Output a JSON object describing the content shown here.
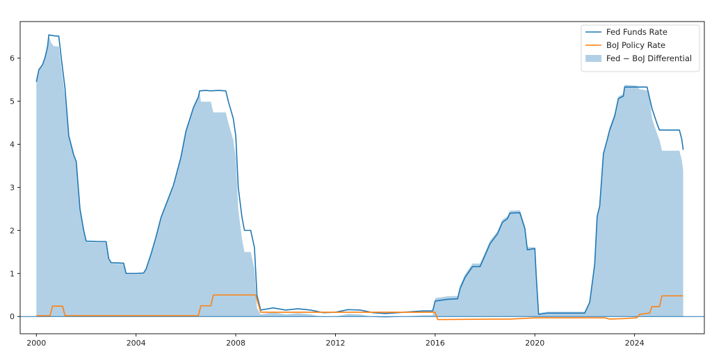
{
  "chart_data": {
    "type": "line",
    "title": "",
    "xlabel": "",
    "ylabel": "",
    "xlim": [
      1999.35,
      2026.8
    ],
    "ylim": [
      -0.4,
      6.85
    ],
    "x_ticks": [
      2000,
      2004,
      2008,
      2012,
      2016,
      2020,
      2024
    ],
    "y_ticks": [
      0,
      1,
      2,
      3,
      4,
      5,
      6
    ],
    "grid": false,
    "legend_position": "top-right",
    "zero_line": true,
    "series": [
      {
        "name": "Fed Funds Rate",
        "kind": "line",
        "color": "#1f77b4",
        "points": [
          [
            2000.0,
            5.45
          ],
          [
            2000.1,
            5.73
          ],
          [
            2000.25,
            5.85
          ],
          [
            2000.35,
            6.02
          ],
          [
            2000.45,
            6.27
          ],
          [
            2000.5,
            6.54
          ],
          [
            2000.7,
            6.52
          ],
          [
            2000.9,
            6.51
          ],
          [
            2001.0,
            6.0
          ],
          [
            2001.15,
            5.3
          ],
          [
            2001.3,
            4.2
          ],
          [
            2001.5,
            3.75
          ],
          [
            2001.6,
            3.6
          ],
          [
            2001.75,
            2.5
          ],
          [
            2001.9,
            2.0
          ],
          [
            2002.0,
            1.75
          ],
          [
            2002.5,
            1.74
          ],
          [
            2002.8,
            1.74
          ],
          [
            2002.9,
            1.35
          ],
          [
            2003.0,
            1.25
          ],
          [
            2003.5,
            1.24
          ],
          [
            2003.6,
            1.0
          ],
          [
            2004.0,
            1.0
          ],
          [
            2004.3,
            1.01
          ],
          [
            2004.4,
            1.1
          ],
          [
            2004.6,
            1.45
          ],
          [
            2004.8,
            1.85
          ],
          [
            2005.0,
            2.3
          ],
          [
            2005.3,
            2.75
          ],
          [
            2005.5,
            3.05
          ],
          [
            2005.8,
            3.7
          ],
          [
            2006.0,
            4.3
          ],
          [
            2006.3,
            4.85
          ],
          [
            2006.5,
            5.1
          ],
          [
            2006.55,
            5.24
          ],
          [
            2006.8,
            5.25
          ],
          [
            2007.0,
            5.24
          ],
          [
            2007.3,
            5.25
          ],
          [
            2007.6,
            5.24
          ],
          [
            2007.7,
            5.0
          ],
          [
            2007.9,
            4.6
          ],
          [
            2008.0,
            4.2
          ],
          [
            2008.1,
            3.0
          ],
          [
            2008.25,
            2.3
          ],
          [
            2008.35,
            2.0
          ],
          [
            2008.6,
            2.0
          ],
          [
            2008.75,
            1.6
          ],
          [
            2008.85,
            0.5
          ],
          [
            2009.0,
            0.15
          ],
          [
            2009.5,
            0.2
          ],
          [
            2010.0,
            0.15
          ],
          [
            2010.5,
            0.18
          ],
          [
            2011.0,
            0.15
          ],
          [
            2011.5,
            0.09
          ],
          [
            2012.0,
            0.1
          ],
          [
            2012.5,
            0.16
          ],
          [
            2013.0,
            0.15
          ],
          [
            2013.5,
            0.09
          ],
          [
            2014.0,
            0.07
          ],
          [
            2014.5,
            0.09
          ],
          [
            2015.0,
            0.11
          ],
          [
            2015.5,
            0.13
          ],
          [
            2015.9,
            0.13
          ],
          [
            2016.0,
            0.36
          ],
          [
            2016.5,
            0.4
          ],
          [
            2016.9,
            0.41
          ],
          [
            2017.0,
            0.65
          ],
          [
            2017.2,
            0.91
          ],
          [
            2017.5,
            1.16
          ],
          [
            2017.8,
            1.16
          ],
          [
            2018.0,
            1.42
          ],
          [
            2018.2,
            1.69
          ],
          [
            2018.5,
            1.92
          ],
          [
            2018.7,
            2.19
          ],
          [
            2018.9,
            2.27
          ],
          [
            2019.0,
            2.4
          ],
          [
            2019.4,
            2.41
          ],
          [
            2019.6,
            2.04
          ],
          [
            2019.7,
            1.55
          ],
          [
            2020.0,
            1.58
          ],
          [
            2020.05,
            1.0
          ],
          [
            2020.15,
            0.05
          ],
          [
            2020.5,
            0.08
          ],
          [
            2021.0,
            0.08
          ],
          [
            2021.5,
            0.08
          ],
          [
            2022.0,
            0.08
          ],
          [
            2022.2,
            0.33
          ],
          [
            2022.4,
            1.21
          ],
          [
            2022.5,
            2.33
          ],
          [
            2022.6,
            2.56
          ],
          [
            2022.75,
            3.78
          ],
          [
            2022.9,
            4.1
          ],
          [
            2023.0,
            4.33
          ],
          [
            2023.2,
            4.65
          ],
          [
            2023.35,
            5.06
          ],
          [
            2023.55,
            5.12
          ],
          [
            2023.6,
            5.33
          ],
          [
            2024.5,
            5.33
          ],
          [
            2024.7,
            4.83
          ],
          [
            2024.9,
            4.48
          ],
          [
            2025.0,
            4.33
          ],
          [
            2025.8,
            4.33
          ],
          [
            2025.9,
            4.1
          ],
          [
            2025.95,
            3.87
          ]
        ]
      },
      {
        "name": "BoJ Policy Rate",
        "kind": "line",
        "color": "#ff7f0e",
        "points": [
          [
            2000.0,
            0.02
          ],
          [
            2000.55,
            0.02
          ],
          [
            2000.65,
            0.24
          ],
          [
            2001.05,
            0.24
          ],
          [
            2001.15,
            0.02
          ],
          [
            2006.5,
            0.02
          ],
          [
            2006.6,
            0.25
          ],
          [
            2007.0,
            0.25
          ],
          [
            2007.1,
            0.5
          ],
          [
            2008.8,
            0.5
          ],
          [
            2008.9,
            0.3
          ],
          [
            2009.0,
            0.1
          ],
          [
            2016.0,
            0.1
          ],
          [
            2016.1,
            -0.07
          ],
          [
            2018.5,
            -0.06
          ],
          [
            2019.0,
            -0.06
          ],
          [
            2020.0,
            -0.03
          ],
          [
            2022.8,
            -0.03
          ],
          [
            2023.0,
            -0.06
          ],
          [
            2023.5,
            -0.05
          ],
          [
            2024.1,
            -0.03
          ],
          [
            2024.2,
            0.05
          ],
          [
            2024.6,
            0.08
          ],
          [
            2024.7,
            0.23
          ],
          [
            2025.0,
            0.23
          ],
          [
            2025.1,
            0.48
          ],
          [
            2025.95,
            0.48
          ]
        ]
      },
      {
        "name": "Fed − BoJ Differential",
        "kind": "area",
        "color": "#1f77b4",
        "opacity": 0.35,
        "points": [
          [
            2000.0,
            5.43
          ],
          [
            2000.1,
            5.71
          ],
          [
            2000.25,
            5.83
          ],
          [
            2000.35,
            6.0
          ],
          [
            2000.45,
            6.25
          ],
          [
            2000.5,
            6.52
          ],
          [
            2000.6,
            6.35
          ],
          [
            2000.7,
            6.28
          ],
          [
            2000.9,
            6.27
          ],
          [
            2001.0,
            5.8
          ],
          [
            2001.15,
            5.1
          ],
          [
            2001.3,
            4.18
          ],
          [
            2001.5,
            3.73
          ],
          [
            2001.6,
            3.58
          ],
          [
            2001.75,
            2.48
          ],
          [
            2001.9,
            1.98
          ],
          [
            2002.0,
            1.73
          ],
          [
            2002.5,
            1.72
          ],
          [
            2002.8,
            1.72
          ],
          [
            2002.9,
            1.33
          ],
          [
            2003.0,
            1.23
          ],
          [
            2003.5,
            1.22
          ],
          [
            2003.6,
            0.98
          ],
          [
            2004.0,
            0.98
          ],
          [
            2004.3,
            0.99
          ],
          [
            2004.4,
            1.08
          ],
          [
            2004.6,
            1.43
          ],
          [
            2004.8,
            1.83
          ],
          [
            2005.0,
            2.28
          ],
          [
            2005.3,
            2.73
          ],
          [
            2005.5,
            3.03
          ],
          [
            2005.8,
            3.68
          ],
          [
            2006.0,
            4.28
          ],
          [
            2006.3,
            4.83
          ],
          [
            2006.5,
            5.08
          ],
          [
            2006.55,
            5.22
          ],
          [
            2006.6,
            4.99
          ],
          [
            2007.0,
            4.99
          ],
          [
            2007.1,
            4.74
          ],
          [
            2007.6,
            4.74
          ],
          [
            2007.7,
            4.5
          ],
          [
            2007.9,
            4.1
          ],
          [
            2008.0,
            3.7
          ],
          [
            2008.1,
            2.5
          ],
          [
            2008.25,
            1.8
          ],
          [
            2008.35,
            1.5
          ],
          [
            2008.6,
            1.5
          ],
          [
            2008.75,
            1.1
          ],
          [
            2008.85,
            0.2
          ],
          [
            2009.0,
            0.05
          ],
          [
            2009.5,
            0.1
          ],
          [
            2010.0,
            0.05
          ],
          [
            2010.5,
            0.08
          ],
          [
            2011.0,
            0.05
          ],
          [
            2011.5,
            -0.01
          ],
          [
            2012.0,
            0.0
          ],
          [
            2012.5,
            0.06
          ],
          [
            2013.0,
            0.05
          ],
          [
            2013.5,
            -0.01
          ],
          [
            2014.0,
            -0.03
          ],
          [
            2014.5,
            -0.01
          ],
          [
            2015.0,
            0.01
          ],
          [
            2015.5,
            0.03
          ],
          [
            2015.9,
            0.03
          ],
          [
            2016.0,
            0.43
          ],
          [
            2016.5,
            0.47
          ],
          [
            2016.9,
            0.48
          ],
          [
            2017.0,
            0.72
          ],
          [
            2017.2,
            0.98
          ],
          [
            2017.5,
            1.23
          ],
          [
            2017.8,
            1.23
          ],
          [
            2018.0,
            1.49
          ],
          [
            2018.2,
            1.76
          ],
          [
            2018.5,
            1.98
          ],
          [
            2018.7,
            2.25
          ],
          [
            2018.9,
            2.33
          ],
          [
            2019.0,
            2.46
          ],
          [
            2019.4,
            2.47
          ],
          [
            2019.6,
            2.1
          ],
          [
            2019.7,
            1.61
          ],
          [
            2020.0,
            1.61
          ],
          [
            2020.05,
            1.03
          ],
          [
            2020.15,
            0.08
          ],
          [
            2020.5,
            0.11
          ],
          [
            2021.0,
            0.11
          ],
          [
            2021.5,
            0.11
          ],
          [
            2022.0,
            0.11
          ],
          [
            2022.2,
            0.36
          ],
          [
            2022.4,
            1.24
          ],
          [
            2022.5,
            2.36
          ],
          [
            2022.6,
            2.59
          ],
          [
            2022.75,
            3.81
          ],
          [
            2022.9,
            4.13
          ],
          [
            2023.0,
            4.39
          ],
          [
            2023.2,
            4.71
          ],
          [
            2023.35,
            5.11
          ],
          [
            2023.55,
            5.17
          ],
          [
            2023.6,
            5.38
          ],
          [
            2024.1,
            5.36
          ],
          [
            2024.2,
            5.28
          ],
          [
            2024.5,
            5.25
          ],
          [
            2024.6,
            5.1
          ],
          [
            2024.7,
            4.6
          ],
          [
            2024.9,
            4.25
          ],
          [
            2025.0,
            4.1
          ],
          [
            2025.1,
            3.85
          ],
          [
            2025.8,
            3.85
          ],
          [
            2025.9,
            3.62
          ],
          [
            2025.95,
            3.39
          ]
        ]
      }
    ]
  }
}
